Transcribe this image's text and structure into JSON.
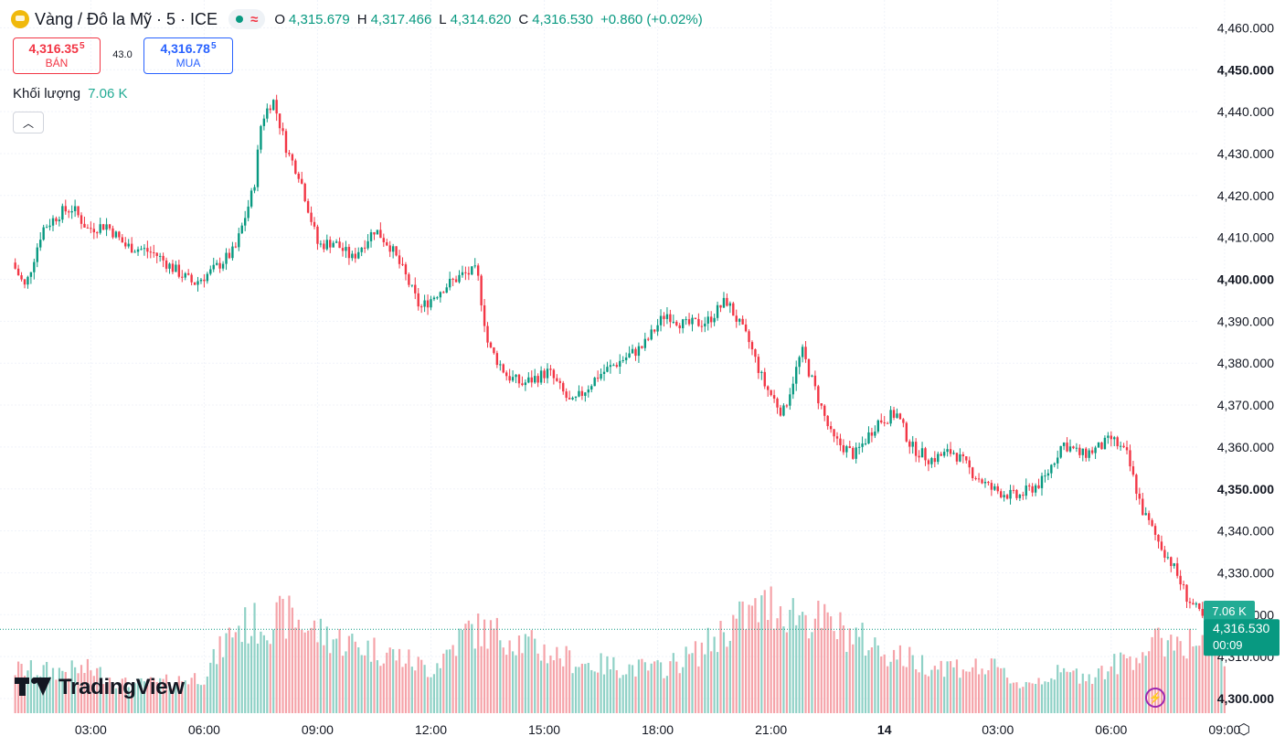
{
  "header": {
    "title": "Vàng / Đô la Mỹ · 5 · ICE",
    "logo_icon": "gold-coin-icon",
    "status_icons": [
      "live-dot-icon",
      "wave-icon"
    ],
    "ohlc": {
      "o_label": "O",
      "o": "4,315.679",
      "h_label": "H",
      "h": "4,317.466",
      "l_label": "L",
      "l": "4,314.620",
      "c_label": "C",
      "c": "4,316.530",
      "change": "+0.860 (+0.02%)"
    }
  },
  "trade": {
    "sell_price": "4,316.35",
    "sell_sup": "5",
    "sell_label": "BÁN",
    "spread": "43.0",
    "buy_price": "4,316.78",
    "buy_sup": "5",
    "buy_label": "MUA"
  },
  "volume_legend": {
    "label": "Khối lượng",
    "value": "7.06 K"
  },
  "brand": "TradingView",
  "colors": {
    "up": "#089981",
    "down": "#f23645",
    "vol_up": "#8fd1c6",
    "vol_down": "#f5a3a9",
    "grid": "#f0f3fa"
  },
  "chart_data": {
    "type": "candlestick",
    "symbol": "Vàng / Đô la Mỹ",
    "interval": "5",
    "exchange": "ICE",
    "y_ticks": [
      "4,460.000",
      "4,450.000",
      "4,440.000",
      "4,430.000",
      "4,420.000",
      "4,410.000",
      "4,400.000",
      "4,390.000",
      "4,380.000",
      "4,370.000",
      "4,360.000",
      "4,350.000",
      "4,340.000",
      "4,330.000",
      "4,320.000",
      "4,310.000",
      "4,300.000"
    ],
    "y_range": [
      4298,
      4462
    ],
    "x_tick_labels": [
      "03:00",
      "06:00",
      "09:00",
      "12:00",
      "15:00",
      "18:00",
      "21:00",
      "14",
      "03:00",
      "06:00",
      "09:00"
    ],
    "x_range_hours": [
      1.0,
      34.4
    ],
    "price_path": [
      [
        1.0,
        4404
      ],
      [
        1.35,
        4398
      ],
      [
        1.8,
        4412
      ],
      [
        2.3,
        4416
      ],
      [
        2.6,
        4417
      ],
      [
        3.0,
        4412
      ],
      [
        3.5,
        4413
      ],
      [
        4.0,
        4408
      ],
      [
        4.5,
        4407
      ],
      [
        4.8,
        4406
      ],
      [
        5.2,
        4403
      ],
      [
        5.8,
        4399
      ],
      [
        6.3,
        4402
      ],
      [
        6.9,
        4407
      ],
      [
        7.2,
        4416
      ],
      [
        7.4,
        4422
      ],
      [
        7.6,
        4438
      ],
      [
        7.9,
        4443
      ],
      [
        8.3,
        4430
      ],
      [
        8.6,
        4425
      ],
      [
        9.1,
        4408
      ],
      [
        9.5,
        4409
      ],
      [
        10.0,
        4405
      ],
      [
        10.6,
        4412
      ],
      [
        11.0,
        4408
      ],
      [
        11.4,
        4401
      ],
      [
        11.8,
        4393
      ],
      [
        12.4,
        4398
      ],
      [
        12.9,
        4401
      ],
      [
        13.3,
        4402
      ],
      [
        13.6,
        4384
      ],
      [
        14.1,
        4377
      ],
      [
        14.5,
        4375
      ],
      [
        15.2,
        4378
      ],
      [
        15.8,
        4370
      ],
      [
        16.5,
        4377
      ],
      [
        17.0,
        4380
      ],
      [
        17.7,
        4384
      ],
      [
        18.3,
        4392
      ],
      [
        18.8,
        4389
      ],
      [
        19.4,
        4390
      ],
      [
        19.9,
        4395
      ],
      [
        20.5,
        4385
      ],
      [
        20.9,
        4375
      ],
      [
        21.4,
        4368
      ],
      [
        21.9,
        4383
      ],
      [
        22.2,
        4375
      ],
      [
        22.7,
        4362
      ],
      [
        23.3,
        4358
      ],
      [
        23.9,
        4366
      ],
      [
        24.4,
        4368
      ],
      [
        24.8,
        4360
      ],
      [
        25.3,
        4357
      ],
      [
        25.9,
        4359
      ],
      [
        26.4,
        4354
      ],
      [
        26.9,
        4350
      ],
      [
        27.6,
        4348
      ],
      [
        28.3,
        4352
      ],
      [
        28.8,
        4361
      ],
      [
        29.3,
        4358
      ],
      [
        29.8,
        4360
      ],
      [
        30.1,
        4362
      ],
      [
        30.5,
        4358
      ],
      [
        30.9,
        4345
      ],
      [
        31.3,
        4338
      ],
      [
        31.7,
        4332
      ],
      [
        32.1,
        4324
      ],
      [
        32.6,
        4318
      ],
      [
        33.0,
        4316.53
      ]
    ],
    "last_price": "4,316.530",
    "last_volume": "7.06 K",
    "countdown": "00:09",
    "volume_levels": [
      [
        1.0,
        0.28
      ],
      [
        2.0,
        0.27
      ],
      [
        3.0,
        0.28
      ],
      [
        4.0,
        0.18
      ],
      [
        5.0,
        0.2
      ],
      [
        6.0,
        0.24
      ],
      [
        6.8,
        0.55
      ],
      [
        7.5,
        0.58
      ],
      [
        8.3,
        0.62
      ],
      [
        9.0,
        0.52
      ],
      [
        10.0,
        0.44
      ],
      [
        11.0,
        0.38
      ],
      [
        12.0,
        0.28
      ],
      [
        13.0,
        0.54
      ],
      [
        14.0,
        0.5
      ],
      [
        15.0,
        0.4
      ],
      [
        16.0,
        0.32
      ],
      [
        17.0,
        0.3
      ],
      [
        18.0,
        0.28
      ],
      [
        19.0,
        0.38
      ],
      [
        20.0,
        0.58
      ],
      [
        21.0,
        0.7
      ],
      [
        22.0,
        0.62
      ],
      [
        23.0,
        0.52
      ],
      [
        24.0,
        0.4
      ],
      [
        25.0,
        0.32
      ],
      [
        26.0,
        0.3
      ],
      [
        27.0,
        0.28
      ],
      [
        27.6,
        0.18
      ],
      [
        28.5,
        0.25
      ],
      [
        29.6,
        0.25
      ],
      [
        30.5,
        0.36
      ],
      [
        31.5,
        0.48
      ],
      [
        32.5,
        0.44
      ],
      [
        33.0,
        0.35
      ]
    ]
  }
}
